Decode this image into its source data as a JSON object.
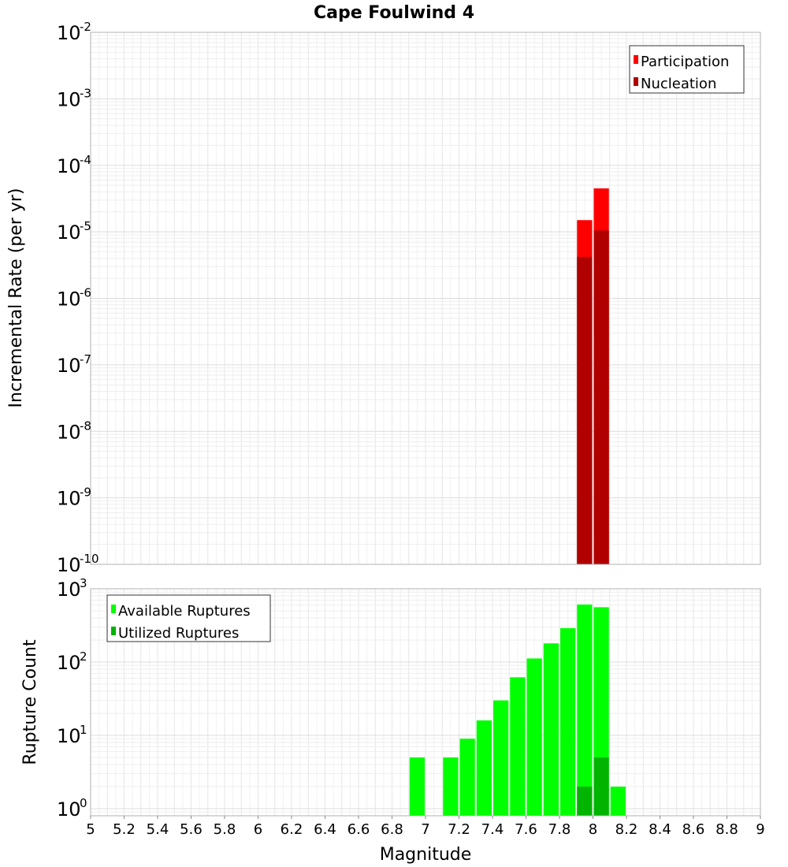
{
  "title": "Cape Foulwind 4",
  "chart_data": [
    {
      "type": "bar",
      "title": "Cape Foulwind 4",
      "xlabel": "Magnitude",
      "ylabel": "Incremental Rate (per yr)",
      "yscale": "log",
      "xlim": [
        5,
        9
      ],
      "ylim": [
        1e-10,
        0.01
      ],
      "bar_width": 0.1,
      "grid": true,
      "legend_position": "top-right",
      "y_ticks": [
        {
          "base": "10",
          "exp": "-2"
        },
        {
          "base": "10",
          "exp": "-3"
        },
        {
          "base": "10",
          "exp": "-4"
        },
        {
          "base": "10",
          "exp": "-5"
        },
        {
          "base": "10",
          "exp": "-6"
        },
        {
          "base": "10",
          "exp": "-7"
        },
        {
          "base": "10",
          "exp": "-8"
        },
        {
          "base": "10",
          "exp": "-9"
        },
        {
          "base": "10",
          "exp": "-10"
        }
      ],
      "series": [
        {
          "name": "Participation",
          "color": "#ff0000",
          "x": [
            7.95,
            8.05
          ],
          "values": [
            1.5e-05,
            4.5e-05
          ]
        },
        {
          "name": "Nucleation",
          "color": "#b00000",
          "x": [
            7.95,
            8.05
          ],
          "values": [
            4.2e-06,
            1.05e-05
          ]
        }
      ]
    },
    {
      "type": "bar",
      "xlabel": "Magnitude",
      "ylabel": "Rupture Count",
      "yscale": "log",
      "xlim": [
        5,
        9
      ],
      "ylim": [
        0.8,
        1000
      ],
      "bar_width": 0.1,
      "grid": true,
      "legend_position": "top-left",
      "y_ticks": [
        {
          "base": "10",
          "exp": "3"
        },
        {
          "base": "10",
          "exp": "2"
        },
        {
          "base": "10",
          "exp": "1"
        },
        {
          "base": "10",
          "exp": "0"
        }
      ],
      "series": [
        {
          "name": "Available Ruptures",
          "color": "#00ff00",
          "x": [
            6.95,
            7.15,
            7.25,
            7.35,
            7.45,
            7.55,
            7.65,
            7.75,
            7.85,
            7.95,
            8.05,
            8.15
          ],
          "values": [
            5,
            5,
            9,
            16,
            30,
            62,
            112,
            180,
            290,
            610,
            560,
            2
          ]
        },
        {
          "name": "Utilized Ruptures",
          "color": "#00b400",
          "x": [
            7.95,
            8.05
          ],
          "values": [
            2,
            5
          ]
        }
      ]
    }
  ],
  "x_ticks": [
    "5",
    "5.2",
    "5.4",
    "5.6",
    "5.8",
    "6",
    "6.2",
    "6.4",
    "6.6",
    "6.8",
    "7",
    "7.2",
    "7.4",
    "7.6",
    "7.8",
    "8",
    "8.2",
    "8.4",
    "8.6",
    "8.8",
    "9"
  ]
}
